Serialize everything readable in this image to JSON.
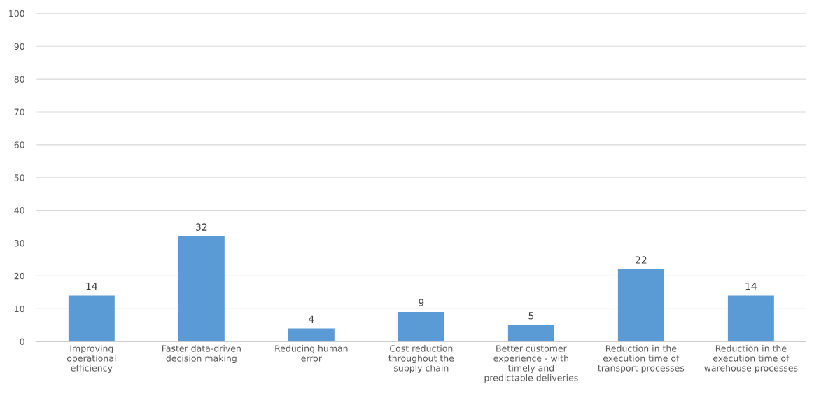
{
  "chart_data": {
    "type": "bar",
    "categories": [
      "Improving\noperational\nefficiency",
      "Faster data-driven\ndecision making",
      "Reducing human\nerror",
      "Cost reduction\nthroughout the\nsupply chain",
      "Better customer\nexperience - with\ntimely and\npredictable deliveries",
      "Reduction in the\nexecution time of\ntransport processes",
      "Reduction in the\nexecution time of\nwarehouse processes"
    ],
    "values": [
      14,
      32,
      4,
      9,
      5,
      22,
      14
    ],
    "color": "#5b9bd5",
    "ylim": [
      0,
      100
    ],
    "yticks": [
      0,
      10,
      20,
      30,
      40,
      50,
      60,
      70,
      80,
      90,
      100
    ],
    "grid": "y",
    "data_labels": true
  }
}
